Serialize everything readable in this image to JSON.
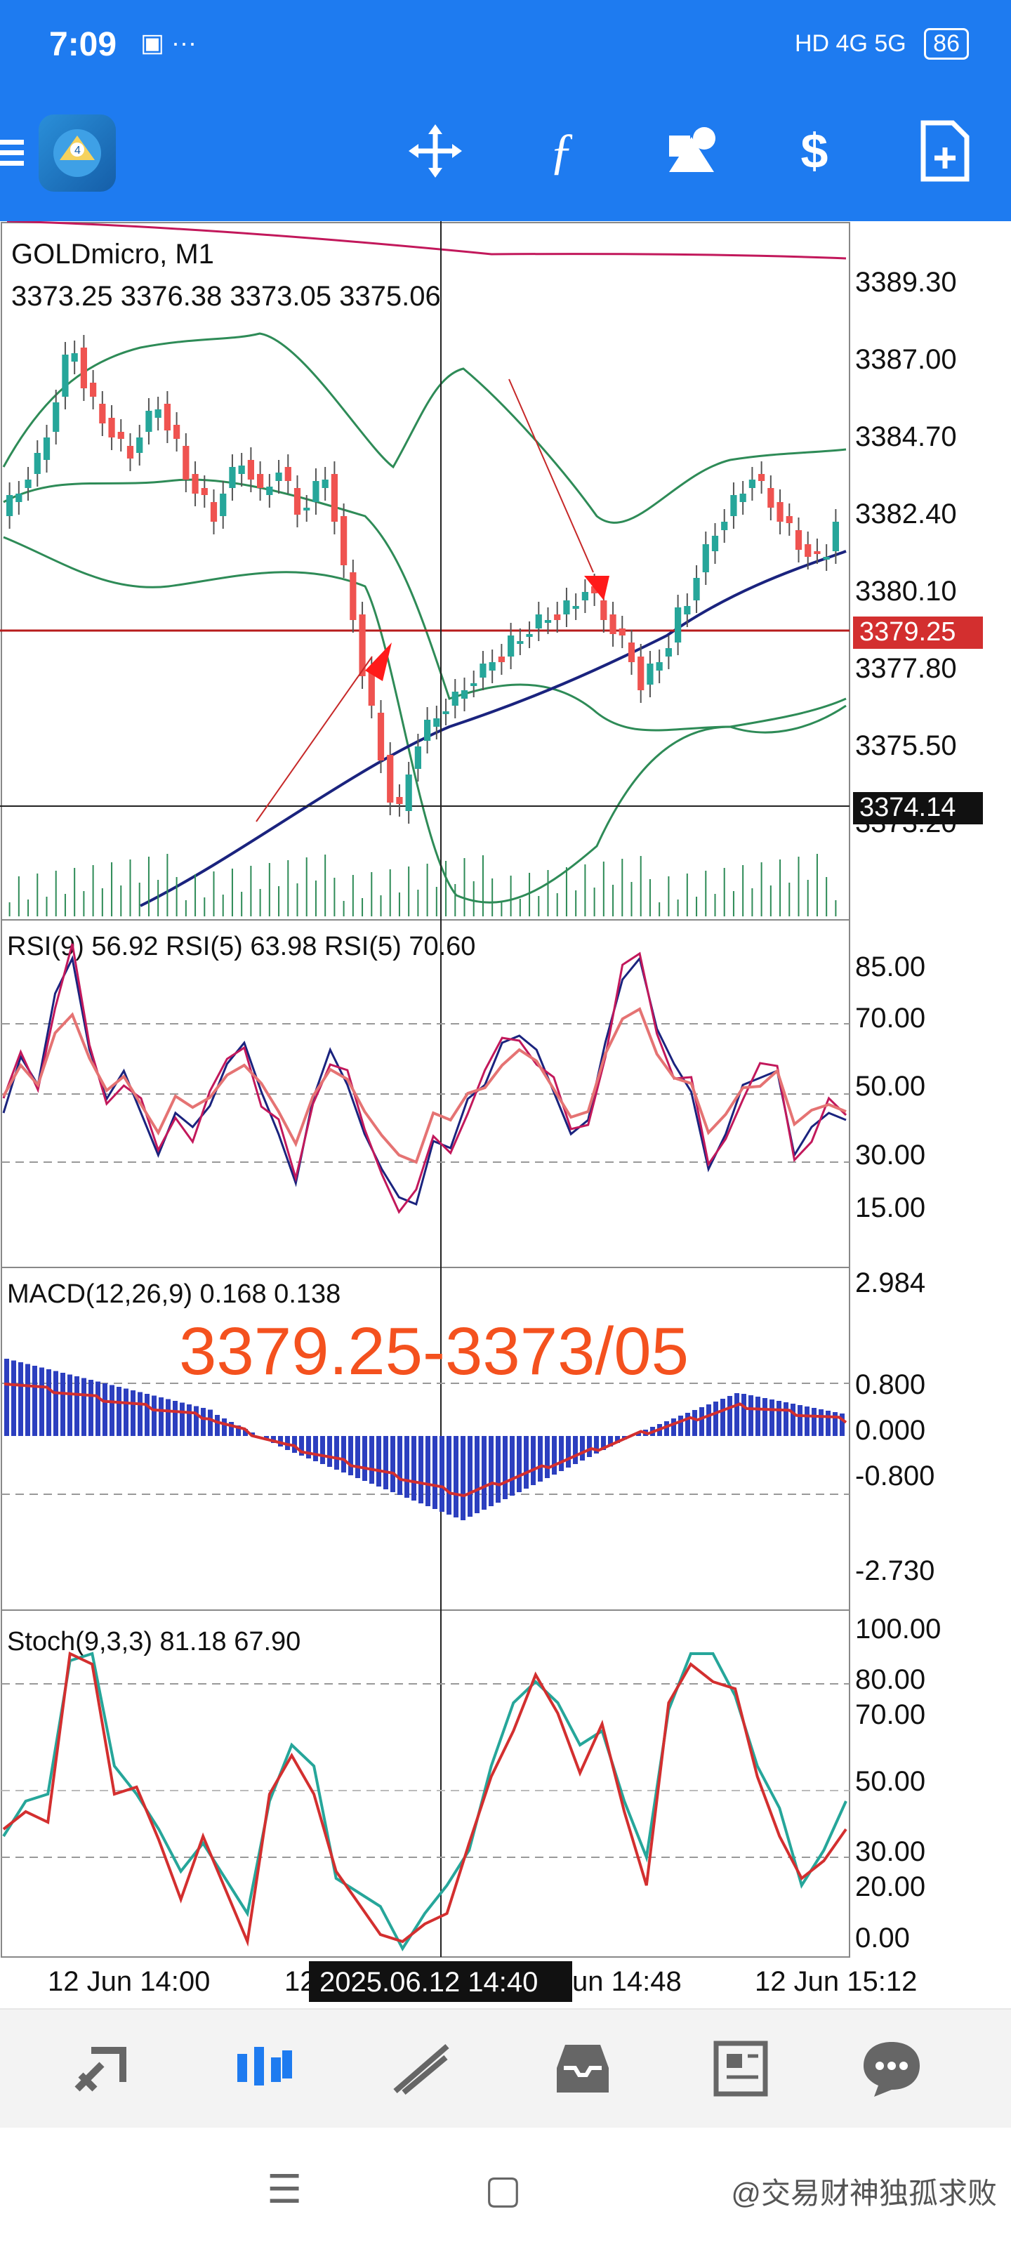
{
  "status_bar": {
    "time": "7:09",
    "network": "HD 4G 5G",
    "battery": "86"
  },
  "toolbar": {
    "items": [
      "menu-icon",
      "app-logo",
      "crosshair-icon",
      "function-icon",
      "objects-icon",
      "trade-icon",
      "new-order-icon"
    ]
  },
  "main_chart": {
    "symbol": "GOLDmicro, M1",
    "ohlc": "3373.25 3376.38 3373.05 3375.06",
    "price_ticks": [
      "3389.30",
      "3387.00",
      "3384.70",
      "3382.40",
      "3380.10",
      "3377.80",
      "3375.50",
      "3373.20"
    ],
    "current_price": "3379.25",
    "crosshair_price": "3374.14",
    "colors": {
      "bull": "#26a69a",
      "bear": "#ef5350",
      "bands": "#3cb371",
      "ma": "#1a237e",
      "price_line": "#b71c1c"
    }
  },
  "rsi": {
    "label": "RSI(9) 56.92 RSI(5) 63.98 RSI(5) 70.60",
    "ticks": [
      "85.00",
      "70.00",
      "50.00",
      "30.00",
      "15.00"
    ]
  },
  "macd": {
    "label": "MACD(12,26,9) 0.168 0.138",
    "ticks": [
      "2.984",
      "0.800",
      "0.000",
      "-0.800",
      "-2.730"
    ],
    "annotation": "3379.25-3373/05"
  },
  "stoch": {
    "label": "Stoch(9,3,3) 81.18 67.90",
    "ticks": [
      "100.00",
      "80.00",
      "70.00",
      "50.00",
      "30.00",
      "20.00",
      "0.00"
    ]
  },
  "time_axis": {
    "labels": [
      "12 Jun 14:00",
      "12",
      "un 14:48",
      "12 Jun 15:12"
    ],
    "crosshair_time": "2025.06.12 14:40"
  },
  "bottom_nav": {
    "items": [
      "quotes-icon",
      "chart-icon",
      "trade-icon",
      "history-icon",
      "news-icon",
      "messages-icon"
    ]
  },
  "watermark": "@交易财神独孤求败"
}
